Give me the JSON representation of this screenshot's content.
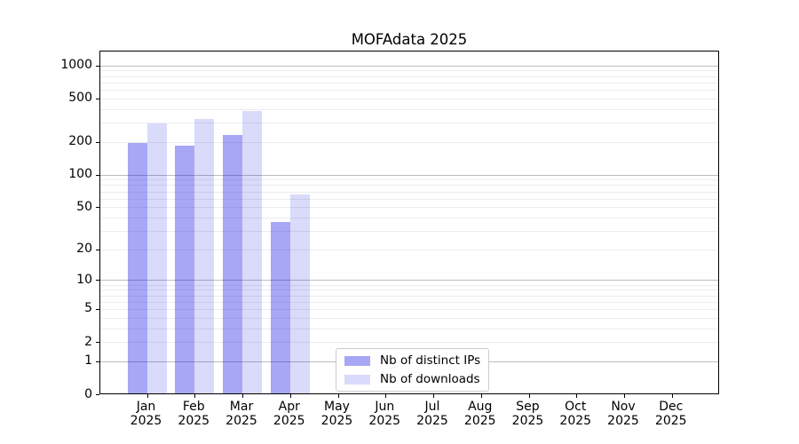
{
  "chart_data": {
    "type": "bar",
    "title": "MOFAdata 2025",
    "categories": [
      {
        "month": "Jan",
        "year": "2025"
      },
      {
        "month": "Feb",
        "year": "2025"
      },
      {
        "month": "Mar",
        "year": "2025"
      },
      {
        "month": "Apr",
        "year": "2025"
      },
      {
        "month": "May",
        "year": "2025"
      },
      {
        "month": "Jun",
        "year": "2025"
      },
      {
        "month": "Jul",
        "year": "2025"
      },
      {
        "month": "Aug",
        "year": "2025"
      },
      {
        "month": "Sep",
        "year": "2025"
      },
      {
        "month": "Oct",
        "year": "2025"
      },
      {
        "month": "Nov",
        "year": "2025"
      },
      {
        "month": "Dec",
        "year": "2025"
      }
    ],
    "series": [
      {
        "name": "Nb of distinct IPs",
        "color": "rgba(10,10,230,0.36)",
        "values": [
          195,
          185,
          230,
          36,
          null,
          null,
          null,
          null,
          null,
          null,
          null,
          null
        ]
      },
      {
        "name": "Nb of downloads",
        "color": "rgba(10,10,230,0.15)",
        "values": [
          295,
          325,
          385,
          65,
          null,
          null,
          null,
          null,
          null,
          null,
          null,
          null
        ]
      }
    ],
    "y_axis": {
      "scale": "log1p",
      "ticks": [
        0,
        1,
        2,
        5,
        10,
        20,
        50,
        100,
        200,
        500,
        1000
      ],
      "major_gridlines": [
        1,
        10,
        100,
        1000
      ],
      "minor_gridlines": [
        2,
        3,
        4,
        5,
        6,
        7,
        8,
        9,
        20,
        30,
        40,
        50,
        60,
        70,
        80,
        90,
        200,
        300,
        400,
        500,
        600,
        700,
        800,
        900
      ],
      "ylim": [
        0,
        1350
      ]
    },
    "xlabel": "",
    "ylabel": "",
    "legend_position": "lower center",
    "grid": "horizontal major+minor",
    "colors": {
      "major_grid": "#bdbdbd",
      "minor_grid": "#ececec",
      "spine": "#000000",
      "text": "#000000",
      "background": "#ffffff"
    }
  }
}
